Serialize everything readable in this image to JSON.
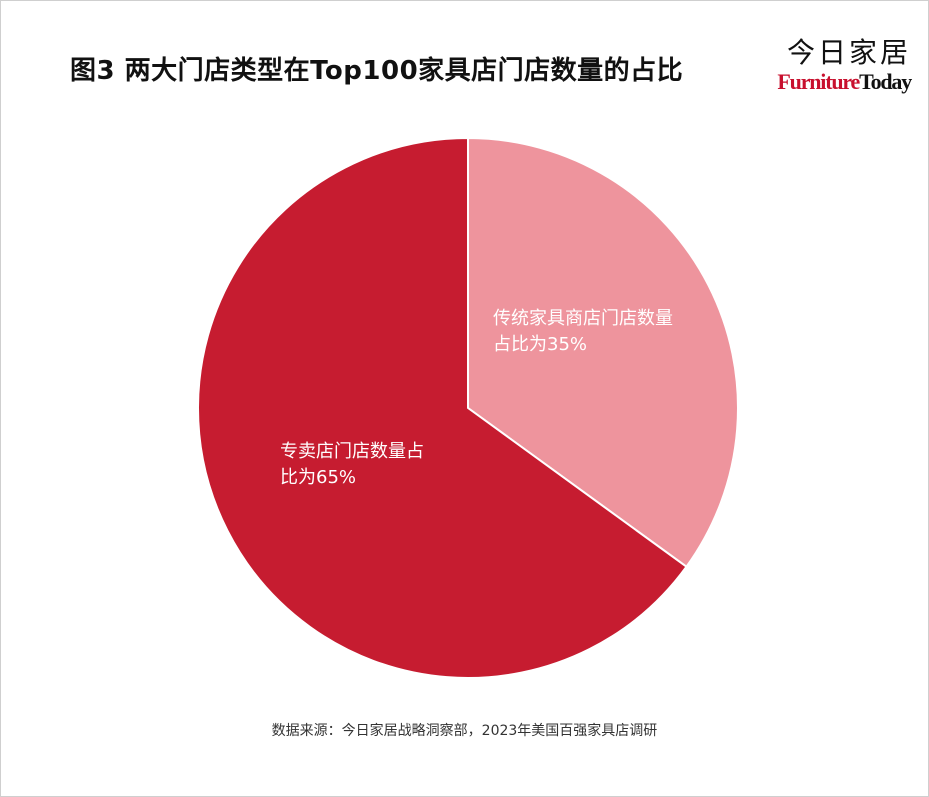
{
  "chart_data": {
    "type": "pie",
    "title": "图3 两大门店类型在Top100家具店门店数量的占比",
    "slices": [
      {
        "name": "传统家具商店门店数量占比",
        "value": 35,
        "label_lines": [
          "传统家具商店门店数量",
          "占比为35%"
        ],
        "color": "#ee949d"
      },
      {
        "name": "专卖店门店数量占比",
        "value": 65,
        "label_lines": [
          "专卖店门店数量占",
          "比为65%"
        ],
        "color": "#c61c30"
      }
    ],
    "start": "12 o'clock",
    "direction": "clockwise",
    "legend": "none",
    "source": "数据来源：今日家居战略洞察部，2023年美国百强家具店调研"
  },
  "logo": {
    "cn": "今日家居",
    "en_part1": "Furniture",
    "en_part2": "Today"
  }
}
